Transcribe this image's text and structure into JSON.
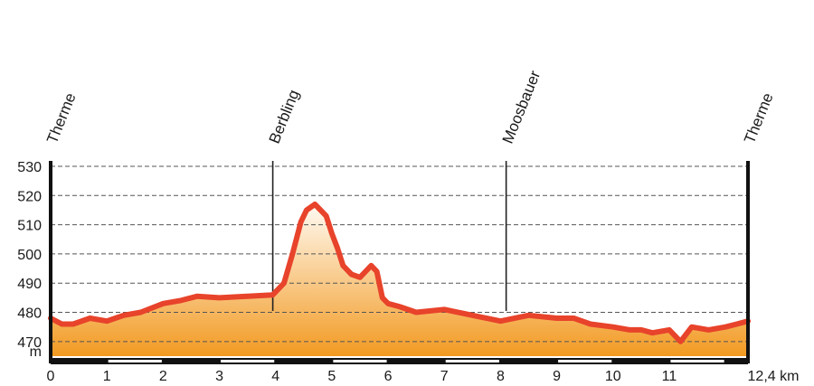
{
  "chart_data": {
    "type": "area",
    "x_unit": "km",
    "y_unit": "m",
    "xlim": [
      0,
      12.4
    ],
    "ylim": [
      465,
      530
    ],
    "x_ticks": [
      0,
      1,
      2,
      3,
      4,
      5,
      6,
      7,
      8,
      9,
      10,
      11
    ],
    "x_end_label": "12,4 km",
    "y_ticks": [
      470,
      480,
      490,
      500,
      510,
      520,
      530
    ],
    "y_unit_label": "m",
    "grid": "horizontal-dashed",
    "colors": {
      "line": "#e8432b",
      "fill_top": "#fffaf2",
      "fill_bottom": "#f29a22",
      "grid": "#555555",
      "axis": "#111111"
    },
    "waypoints": [
      {
        "name": "Therme",
        "km": 0
      },
      {
        "name": "Berbling",
        "km": 3.95
      },
      {
        "name": "Moosbauer",
        "km": 8.1
      },
      {
        "name": "Therme",
        "km": 12.4
      }
    ],
    "x": [
      0,
      0.2,
      0.4,
      0.7,
      1.0,
      1.3,
      1.6,
      2.0,
      2.3,
      2.6,
      3.0,
      3.5,
      3.95,
      4.15,
      4.3,
      4.45,
      4.55,
      4.7,
      4.8,
      4.9,
      5.0,
      5.1,
      5.2,
      5.35,
      5.5,
      5.7,
      5.8,
      5.9,
      6.0,
      6.2,
      6.5,
      7.0,
      7.5,
      8.0,
      8.5,
      9.0,
      9.3,
      9.6,
      10.0,
      10.3,
      10.5,
      10.7,
      11.0,
      11.2,
      11.4,
      11.7,
      12.0,
      12.2,
      12.4
    ],
    "values": [
      478,
      476,
      476,
      478,
      477,
      479,
      480,
      483,
      484,
      485.5,
      485,
      485.5,
      486,
      490,
      500,
      511,
      515,
      517,
      515,
      513,
      507,
      502,
      496,
      493,
      492,
      496,
      494,
      485,
      483,
      482,
      480,
      481,
      479,
      477,
      479,
      478,
      478,
      476,
      475,
      474,
      474,
      473,
      474,
      470,
      475,
      474,
      475,
      476,
      477
    ]
  }
}
